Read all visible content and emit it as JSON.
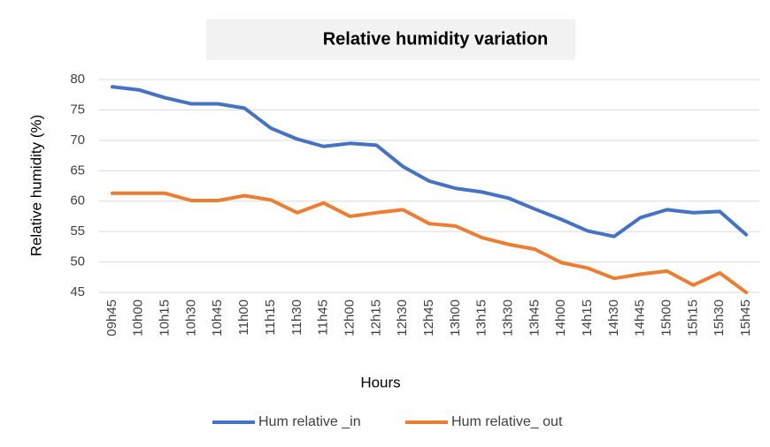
{
  "chart_data": {
    "type": "line",
    "title": "Relative humidity variation",
    "x_label": "Hours",
    "y_label": "Relative humidity (%)",
    "categories": [
      "09h45",
      "10h00",
      "10h15",
      "10h30",
      "10h45",
      "11h00",
      "11h15",
      "11h30",
      "11h45",
      "12h00",
      "12h15",
      "12h30",
      "12h45",
      "13h00",
      "13h15",
      "13h30",
      "13h45",
      "14h00",
      "14h15",
      "14h30",
      "14h45",
      "15h00",
      "15h15",
      "15h30",
      "15h45"
    ],
    "series": [
      {
        "name": "Hum relative _in",
        "color": "#4472c4",
        "values": [
          78.8,
          78.3,
          77,
          76,
          76,
          75.3,
          72,
          70.2,
          69,
          69.5,
          69.2,
          65.7,
          63.3,
          62.1,
          61.5,
          60.5,
          58.7,
          57,
          55.1,
          54.2,
          57.3,
          58.6,
          58.1,
          58.3,
          54.5
        ]
      },
      {
        "name": "Hum relative_ out",
        "color": "#ed7d31",
        "values": [
          61.3,
          61.3,
          61.3,
          60.1,
          60.1,
          60.9,
          60.2,
          58.1,
          59.7,
          57.5,
          58.1,
          58.6,
          56.3,
          55.9,
          54,
          52.9,
          52.1,
          49.9,
          49,
          47.3,
          48,
          48.5,
          46.2,
          48.2,
          45
        ]
      }
    ],
    "ylim": [
      45,
      80
    ],
    "yticks": [
      45,
      50,
      55,
      60,
      65,
      70,
      75,
      80
    ],
    "grid": true,
    "legend": "bottom"
  }
}
